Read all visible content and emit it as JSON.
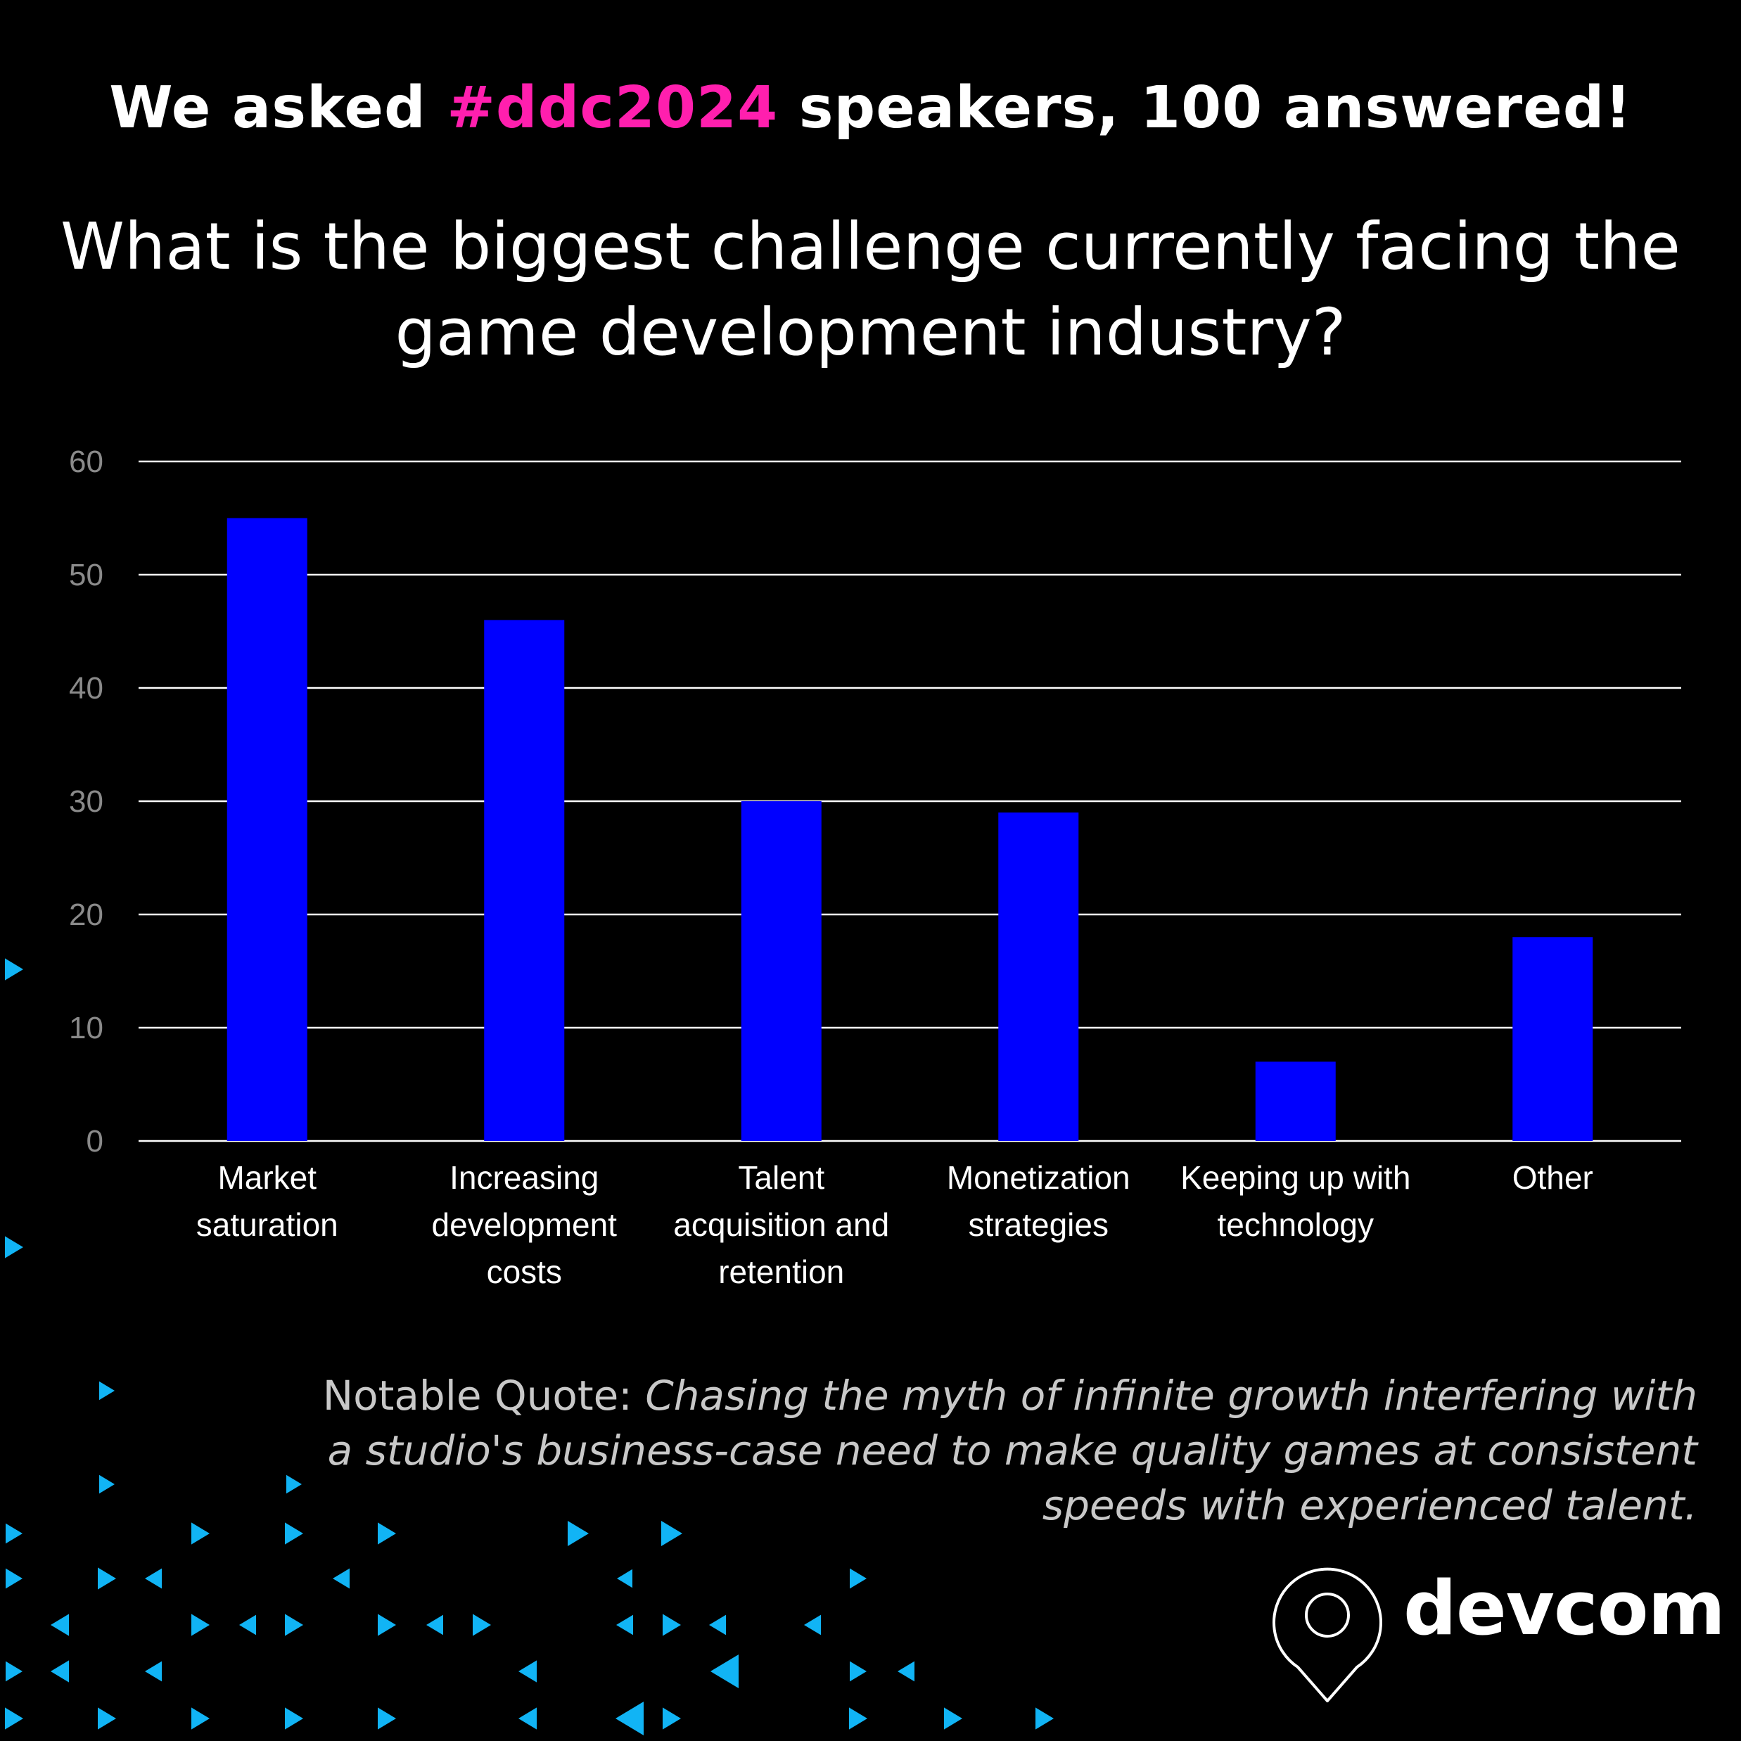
{
  "headline": {
    "prefix": "We asked ",
    "hashtag": "#ddc2024",
    "suffix": " speakers, 100 answered!"
  },
  "question": "What is the biggest challenge currently facing the game development industry?",
  "chart_data": {
    "type": "bar",
    "categories": [
      [
        "Market",
        "saturation"
      ],
      [
        "Increasing",
        "development",
        "costs"
      ],
      [
        "Talent",
        "acquisition and",
        "retention"
      ],
      [
        "Monetization",
        "strategies"
      ],
      [
        "Keeping up with",
        "technology"
      ],
      [
        "Other"
      ]
    ],
    "values": [
      55,
      46,
      30,
      29,
      7,
      18
    ],
    "yticks": [
      0,
      10,
      20,
      30,
      40,
      50,
      60
    ],
    "ylim": [
      0,
      60
    ],
    "title": "",
    "xlabel": "",
    "ylabel": "",
    "grid": true,
    "bar_color": "#0000ff"
  },
  "quote": {
    "label": "Notable Quote: ",
    "text": "Chasing the myth of infinite growth interfering with a studio's business-case need to make quality games at consistent speeds with experienced talent."
  },
  "logo": {
    "text": "devcom"
  },
  "colors": {
    "background": "#000000",
    "hashtag": "#ff1fae",
    "triangles": "#11b4f5"
  },
  "decoration": {
    "icon": "triangle-pattern"
  }
}
